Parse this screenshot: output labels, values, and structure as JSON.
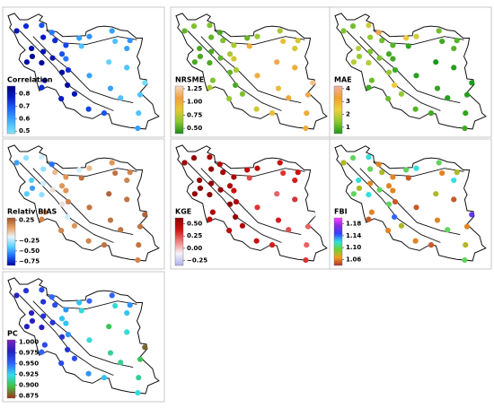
{
  "panels": [
    {
      "title": "Correlation",
      "clim": [
        0.48,
        0.86
      ],
      "ticks": [
        0.8,
        0.7,
        0.6,
        0.5
      ],
      "colors": [
        "#7fe8ff",
        "#3fb4ff",
        "#1f6aff",
        "#0a1fd0",
        "#000080"
      ],
      "values": [
        0.75,
        0.8,
        0.7,
        0.65,
        0.78,
        0.82,
        0.83,
        0.8,
        0.75,
        0.72,
        0.6,
        0.62,
        0.6,
        0.62,
        0.55,
        0.55,
        0.7,
        0.8,
        0.83,
        0.82,
        0.8,
        0.75,
        0.75,
        0.82,
        0.83,
        0.78,
        0.8,
        0.6,
        0.6,
        0.55,
        0.52,
        0.55,
        0.5,
        0.7,
        0.6,
        0.55,
        0.72,
        0.65,
        0.55,
        0.6
      ]
    },
    {
      "title": "NRSME",
      "clim": [
        0.4,
        1.3
      ],
      "ticks": [
        {
          "value": 1.25,
          "label": "1.25"
        },
        {
          "value": 1,
          "label": "1.00"
        },
        {
          "value": 0.75,
          "label": "0.75"
        },
        {
          "value": 0.5,
          "label": "0.50"
        }
      ],
      "colors": [
        "#1a8c1a",
        "#8cc832",
        "#e6c832",
        "#f0a040",
        "#f8d8c0"
      ],
      "values": [
        0.6,
        0.55,
        0.6,
        0.5,
        0.55,
        0.5,
        0.5,
        0.5,
        0.6,
        0.7,
        0.55,
        0.65,
        0.7,
        0.8,
        0.9,
        1.0,
        0.7,
        0.55,
        0.5,
        0.5,
        0.6,
        0.7,
        0.7,
        0.55,
        0.5,
        0.65,
        0.6,
        1.0,
        0.9,
        1.0,
        1.1,
        1.1,
        1.2,
        0.9,
        1.0,
        1.0,
        0.8,
        0.8,
        1.0,
        0.8
      ]
    },
    {
      "title": "MAE",
      "clim": [
        0.5,
        4.2
      ],
      "ticks": [
        4,
        3,
        2,
        1
      ],
      "colors": [
        "#1a9a1a",
        "#8cc832",
        "#f0d040",
        "#f0a030",
        "#f0b0a0"
      ],
      "values": [
        1.2,
        1.3,
        2,
        3.5,
        1.5,
        1.8,
        1.5,
        1.3,
        1.2,
        1.0,
        2.5,
        2,
        1.2,
        1,
        0.8,
        0.7,
        0.8,
        1.3,
        1.8,
        1.8,
        1.2,
        0.8,
        0.8,
        1.5,
        2.5,
        1.2,
        1.5,
        0.6,
        0.7,
        0.6,
        0.5,
        0.6,
        0.5,
        0.8,
        0.8,
        0.7,
        1,
        0.8,
        0.6,
        1
      ]
    },
    {
      "title": "Relativ BIAS",
      "clim": [
        -0.85,
        0.3
      ],
      "ticks": [
        {
          "value": 0.25,
          "label": "0.25"
        },
        {
          "value": -0.25,
          "label": "−0.25"
        },
        {
          "value": -0.5,
          "label": "−0.50"
        },
        {
          "value": -0.75,
          "label": "−0.75"
        }
      ],
      "colors": [
        "#0000a0",
        "#1e6aff",
        "#5ad2ff",
        "#e8f4ff",
        "#e8a060",
        "#a0522d"
      ],
      "values": [
        -0.3,
        -0.5,
        -0.2,
        -0.6,
        -0.3,
        -0.4,
        -0.5,
        -0.2,
        0,
        0.1,
        -0.2,
        0,
        0.1,
        0.15,
        0.2,
        0.2,
        0.1,
        -0.1,
        -0.3,
        -0.4,
        0.1,
        0.15,
        0.15,
        -0.1,
        -0.2,
        0.15,
        0.1,
        0.2,
        0.2,
        0.2,
        0.25,
        0.2,
        0.25,
        0.2,
        0.15,
        0.2,
        0.15,
        0.1,
        0.2,
        0.15
      ]
    },
    {
      "title": "KGE",
      "clim": [
        -0.35,
        0.62
      ],
      "ticks": [
        {
          "value": 0.5,
          "label": "0.50"
        },
        {
          "value": 0.25,
          "label": "0.25"
        },
        {
          "value": 0,
          "label": "0.00"
        },
        {
          "value": -0.25,
          "label": "−0.25"
        }
      ],
      "colors": [
        "#b0b0f0",
        "#f4f4f8",
        "#f08080",
        "#d01010",
        "#8b0000"
      ],
      "values": [
        0.6,
        0.55,
        0.5,
        0.5,
        0.6,
        0.6,
        0.6,
        0.6,
        0.55,
        0.5,
        0.45,
        0.45,
        0.4,
        0.4,
        0.3,
        0.25,
        0.5,
        0.6,
        0.6,
        0.6,
        0.5,
        0.45,
        0.5,
        0.6,
        0.6,
        0.45,
        0.5,
        0.3,
        0.35,
        0.3,
        0.2,
        0.2,
        -0.1,
        0.35,
        0.3,
        0.2,
        0.4,
        0.4,
        0.25,
        0.35
      ]
    },
    {
      "title": "FBI",
      "clim": [
        1.04,
        1.2
      ],
      "ticks": [
        1.18,
        1.14,
        {
          "value": 1.1,
          "label": "1.10"
        },
        1.06
      ],
      "colors": [
        "#b03030",
        "#f0a020",
        "#70d030",
        "#30e0e0",
        "#3040ff",
        "#8a2be2",
        "#ff40ff"
      ],
      "values": [
        1.1,
        1.08,
        1.12,
        1.06,
        1.1,
        1.12,
        1.08,
        1.06,
        1.08,
        1.06,
        1.1,
        1.12,
        1.1,
        1.08,
        1.06,
        1.05,
        1.06,
        1.1,
        1.12,
        1.1,
        1.06,
        1.05,
        1.05,
        1.1,
        1.14,
        1.06,
        1.08,
        1.05,
        1.06,
        1.05,
        1.08,
        1.06,
        1.16,
        1.05,
        1.1,
        1.08,
        1.06,
        1.06,
        1.1,
        1.12
      ]
    },
    {
      "title": "PC",
      "clim": [
        0.87,
        1.005
      ],
      "ticks": [
        {
          "value": 1,
          "label": "1.000"
        },
        0.975,
        {
          "value": 0.95,
          "label": "0.950"
        },
        0.925,
        {
          "value": 0.9,
          "label": "0.900"
        },
        0.875
      ],
      "colors": [
        "#a03020",
        "#40c040",
        "#30e0f0",
        "#3060ff",
        "#2020c0",
        "#8020c0"
      ],
      "values": [
        0.97,
        0.98,
        0.96,
        0.95,
        0.97,
        0.98,
        0.98,
        0.97,
        0.96,
        0.94,
        0.93,
        0.95,
        0.95,
        0.94,
        0.92,
        0.92,
        0.93,
        0.97,
        0.98,
        0.98,
        0.96,
        0.95,
        0.94,
        0.97,
        0.97,
        0.96,
        0.96,
        0.92,
        0.91,
        0.92,
        0.9,
        0.9,
        0.88,
        0.93,
        0.92,
        0.91,
        0.94,
        0.93,
        0.91,
        0.93
      ]
    }
  ]
}
